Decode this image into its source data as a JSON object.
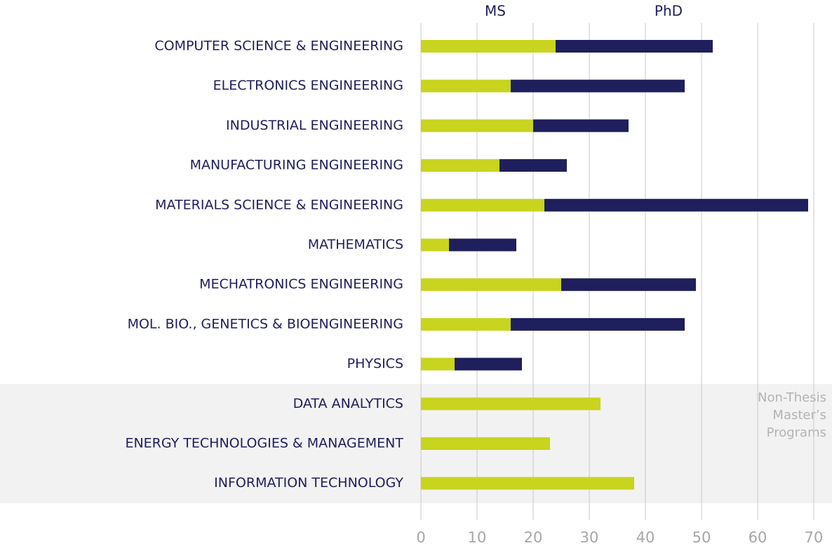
{
  "chart_data": {
    "type": "bar",
    "orientation": "horizontal",
    "stacked": true,
    "categories": [
      "COMPUTER SCIENCE & ENGINEERING",
      "ELECTRONICS ENGINEERING",
      "INDUSTRIAL ENGINEERING",
      "MANUFACTURING ENGINEERING",
      "MATERIALS SCIENCE & ENGINEERING",
      "MATHEMATICS",
      "MECHATRONICS ENGINEERING",
      "MOL. BIO., GENETICS & BIOENGINEERING",
      "PHYSICS",
      "DATA ANALYTICS",
      "ENERGY TECHNOLOGIES & MANAGEMENT",
      "INFORMATION TECHNOLOGY"
    ],
    "series": [
      {
        "name": "MS",
        "color": "#c8d41e",
        "values": [
          24,
          16,
          20,
          14,
          22,
          5,
          25,
          16,
          6,
          32,
          23,
          38
        ]
      },
      {
        "name": "PhD",
        "color": "#1e1f5c",
        "values": [
          28,
          31,
          17,
          12,
          47,
          12,
          24,
          31,
          12,
          null,
          null,
          null
        ]
      }
    ],
    "xlim": [
      0,
      70
    ],
    "xticks": [
      0,
      10,
      20,
      30,
      40,
      50,
      60,
      70
    ],
    "grid": true,
    "annotation": [
      "Non-Thesis",
      "Master’s",
      "Programs"
    ]
  }
}
